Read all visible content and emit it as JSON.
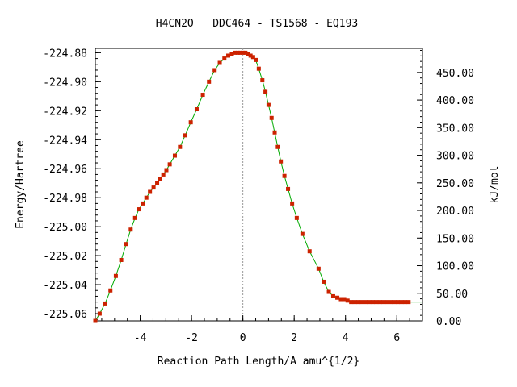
{
  "chart_data": {
    "type": "line",
    "title": "H4CN2O   DDC464 - TS1568 - EQ193",
    "xlabel": "Reaction Path Length/A amu^{1/2}",
    "ylabel": "Energy/Hartree",
    "y2label": "kJ/mol",
    "xlim": [
      -5.75,
      7.0
    ],
    "ylim": [
      -225.065,
      -224.877
    ],
    "y2lim": [
      0,
      493.6
    ],
    "x_ticks": [
      -4,
      -2,
      0,
      2,
      4,
      6
    ],
    "x_tick_labels": [
      "-4",
      "-2",
      "0",
      "2",
      "4",
      "6"
    ],
    "y_ticks": [
      -224.88,
      -224.9,
      -224.92,
      -224.94,
      -224.96,
      -224.98,
      -225.0,
      -225.02,
      -225.04,
      -225.06
    ],
    "y_tick_labels": [
      "-224.88",
      "-224.90",
      "-224.92",
      "-224.94",
      "-224.96",
      "-224.98",
      "-225.00",
      "-225.02",
      "-225.04",
      "-225.06"
    ],
    "y2_ticks": [
      0,
      50,
      100,
      150,
      200,
      250,
      300,
      350,
      400,
      450
    ],
    "y2_tick_labels": [
      "0.00",
      "50.00",
      "100.00",
      "150.00",
      "200.00",
      "250.00",
      "300.00",
      "350.00",
      "400.00",
      "450.00"
    ],
    "ts_marker_x": 0,
    "grid": false,
    "line_color": "#00aa00",
    "marker_color": "#cc2200",
    "series": [
      {
        "x": [
          -5.75,
          -5.58,
          -5.37,
          -5.16,
          -4.95,
          -4.74,
          -4.55,
          -4.37,
          -4.2,
          -4.05,
          -3.9,
          -3.76,
          -3.62,
          -3.48,
          -3.34,
          -3.22,
          -3.1,
          -2.98,
          -2.85,
          -2.65,
          -2.45,
          -2.25,
          -2.03,
          -1.8,
          -1.56,
          -1.32,
          -1.1,
          -0.9,
          -0.72,
          -0.57,
          -0.43,
          -0.32,
          -0.2,
          -0.1,
          0.0,
          0.1,
          0.2,
          0.3,
          0.4,
          0.5,
          0.62,
          0.76,
          0.88,
          1.0,
          1.12,
          1.24,
          1.36,
          1.48,
          1.62,
          1.76,
          1.92,
          2.1,
          2.32,
          2.6,
          2.95,
          3.15,
          3.35,
          3.52,
          3.68,
          3.82,
          3.95,
          4.08,
          4.22,
          4.36,
          4.5,
          4.64,
          4.78,
          4.92,
          5.06,
          5.2,
          5.34,
          5.48,
          5.62,
          5.76,
          5.9,
          6.04,
          6.18,
          6.32,
          6.46,
          7.0
        ],
        "y": [
          -225.065,
          -225.06,
          -225.053,
          -225.044,
          -225.034,
          -225.023,
          -225.012,
          -225.002,
          -224.994,
          -224.988,
          -224.984,
          -224.98,
          -224.976,
          -224.973,
          -224.97,
          -224.967,
          -224.964,
          -224.961,
          -224.957,
          -224.951,
          -224.945,
          -224.937,
          -224.928,
          -224.919,
          -224.909,
          -224.9,
          -224.892,
          -224.887,
          -224.884,
          -224.882,
          -224.881,
          -224.88,
          -224.88,
          -224.88,
          -224.88,
          -224.88,
          -224.881,
          -224.882,
          -224.883,
          -224.885,
          -224.891,
          -224.899,
          -224.907,
          -224.916,
          -224.925,
          -224.935,
          -224.945,
          -224.955,
          -224.965,
          -224.974,
          -224.984,
          -224.994,
          -225.005,
          -225.017,
          -225.029,
          -225.038,
          -225.045,
          -225.048,
          -225.049,
          -225.05,
          -225.05,
          -225.051,
          -225.052,
          -225.052,
          -225.052,
          -225.052,
          -225.052,
          -225.052,
          -225.052,
          -225.052,
          -225.052,
          -225.052,
          -225.052,
          -225.052,
          -225.052,
          -225.052,
          -225.052,
          -225.052,
          -225.052,
          -225.052
        ]
      }
    ]
  }
}
